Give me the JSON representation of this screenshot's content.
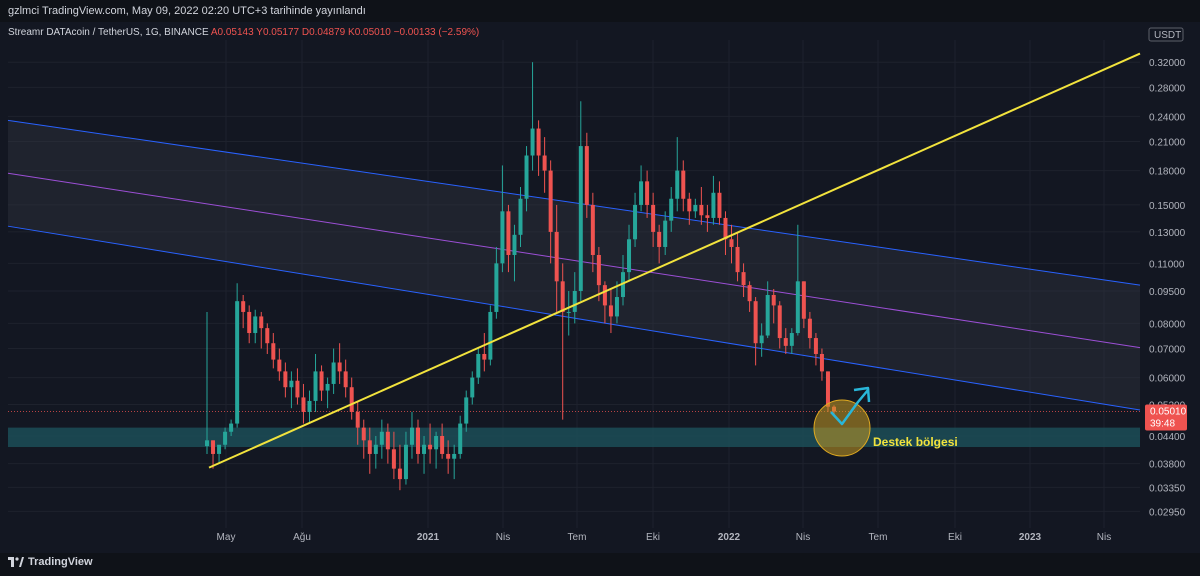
{
  "header": {
    "published": "gzlmci TradingView.com, May 09, 2022 02:20 UTC+3 tarihinde yayınlandı"
  },
  "symbol": {
    "name": "Streamr DATAcoin / TetherUS, 1G, BINANCE",
    "ohlc_label": "A0.05143 Y0.05177 D0.04879 K0.05010 −0.00133 (−2.59%)"
  },
  "annotation": {
    "support_label": "Destek bölgesi"
  },
  "footer": {
    "brand": "TradingView"
  },
  "colors": {
    "background": "#131722",
    "up": "#26a69a",
    "down": "#ef5350",
    "trendline": "#f2e33d",
    "channel_edge": "#2962ff",
    "channel_mid": "#9c4fd6",
    "support_zone": "#1c4e57",
    "circle_fill": "#c79a22",
    "arrow": "#29b6d9"
  },
  "chart_data": {
    "type": "candlestick",
    "title": "",
    "xlabel": "",
    "ylabel": "",
    "y_scale": "log",
    "ylim": [
      0.027,
      0.36
    ],
    "currency_label": "USDT",
    "y_ticks": [
      "0.32000",
      "0.28000",
      "0.24000",
      "0.21000",
      "0.18000",
      "0.15000",
      "0.13000",
      "0.11000",
      "0.09500",
      "0.08000",
      "0.07000",
      "0.06000",
      "0.05200",
      "0.04400",
      "0.03800",
      "0.03350",
      "0.02950"
    ],
    "x_ticks": [
      "May",
      "Ağu",
      "2021",
      "Nis",
      "Tem",
      "Eki",
      "2022",
      "Nis",
      "Tem",
      "Eki",
      "2023",
      "Nis"
    ],
    "last_price": "0.05010",
    "countdown": "39:48",
    "support_zone": [
      0.0415,
      0.046
    ],
    "series": [
      {
        "values": [
          [
            0.085,
            0.04,
            0.043
          ],
          [
            0.043,
            0.037,
            0.04
          ],
          [
            0.04,
            0.038,
            0.042
          ],
          [
            0.046,
            0.041,
            0.045
          ],
          [
            0.048,
            0.044,
            0.047
          ],
          [
            0.099,
            0.046,
            0.09
          ],
          [
            0.093,
            0.078,
            0.085
          ],
          [
            0.088,
            0.072,
            0.076
          ],
          [
            0.086,
            0.072,
            0.083
          ],
          [
            0.085,
            0.07,
            0.078
          ],
          [
            0.08,
            0.068,
            0.072
          ],
          [
            0.076,
            0.063,
            0.066
          ],
          [
            0.07,
            0.059,
            0.062
          ],
          [
            0.065,
            0.054,
            0.057
          ],
          [
            0.062,
            0.051,
            0.059
          ],
          [
            0.063,
            0.052,
            0.054
          ],
          [
            0.058,
            0.047,
            0.05
          ],
          [
            0.056,
            0.047,
            0.053
          ],
          [
            0.068,
            0.05,
            0.062
          ],
          [
            0.064,
            0.053,
            0.056
          ],
          [
            0.06,
            0.051,
            0.058
          ],
          [
            0.07,
            0.055,
            0.065
          ],
          [
            0.072,
            0.058,
            0.062
          ],
          [
            0.066,
            0.054,
            0.057
          ],
          [
            0.06,
            0.048,
            0.05
          ],
          [
            0.053,
            0.042,
            0.046
          ],
          [
            0.048,
            0.039,
            0.043
          ],
          [
            0.046,
            0.036,
            0.04
          ],
          [
            0.044,
            0.037,
            0.042
          ],
          [
            0.048,
            0.039,
            0.045
          ],
          [
            0.047,
            0.038,
            0.041
          ],
          [
            0.045,
            0.035,
            0.037
          ],
          [
            0.042,
            0.033,
            0.035
          ],
          [
            0.045,
            0.034,
            0.042
          ],
          [
            0.05,
            0.039,
            0.046
          ],
          [
            0.048,
            0.038,
            0.04
          ],
          [
            0.044,
            0.036,
            0.042
          ],
          [
            0.047,
            0.038,
            0.041
          ],
          [
            0.045,
            0.037,
            0.044
          ],
          [
            0.047,
            0.039,
            0.04
          ],
          [
            0.043,
            0.036,
            0.039
          ],
          [
            0.042,
            0.035,
            0.04
          ],
          [
            0.049,
            0.039,
            0.047
          ],
          [
            0.056,
            0.045,
            0.054
          ],
          [
            0.062,
            0.052,
            0.06
          ],
          [
            0.07,
            0.058,
            0.068
          ],
          [
            0.076,
            0.062,
            0.066
          ],
          [
            0.088,
            0.064,
            0.085
          ],
          [
            0.12,
            0.082,
            0.11
          ],
          [
            0.185,
            0.105,
            0.145
          ],
          [
            0.15,
            0.105,
            0.115
          ],
          [
            0.135,
            0.1,
            0.128
          ],
          [
            0.165,
            0.12,
            0.155
          ],
          [
            0.205,
            0.145,
            0.195
          ],
          [
            0.32,
            0.18,
            0.225
          ],
          [
            0.235,
            0.175,
            0.195
          ],
          [
            0.215,
            0.16,
            0.18
          ],
          [
            0.19,
            0.11,
            0.13
          ],
          [
            0.15,
            0.085,
            0.1
          ],
          [
            0.11,
            0.048,
            0.085
          ],
          [
            0.095,
            0.075,
            0.085
          ],
          [
            0.105,
            0.08,
            0.095
          ],
          [
            0.26,
            0.09,
            0.205
          ],
          [
            0.22,
            0.14,
            0.15
          ],
          [
            0.16,
            0.105,
            0.115
          ],
          [
            0.12,
            0.09,
            0.098
          ],
          [
            0.1,
            0.08,
            0.088
          ],
          [
            0.096,
            0.076,
            0.083
          ],
          [
            0.1,
            0.08,
            0.092
          ],
          [
            0.115,
            0.088,
            0.105
          ],
          [
            0.135,
            0.1,
            0.125
          ],
          [
            0.16,
            0.12,
            0.15
          ],
          [
            0.185,
            0.145,
            0.17
          ],
          [
            0.18,
            0.14,
            0.15
          ],
          [
            0.16,
            0.12,
            0.13
          ],
          [
            0.135,
            0.11,
            0.12
          ],
          [
            0.145,
            0.115,
            0.138
          ],
          [
            0.165,
            0.13,
            0.155
          ],
          [
            0.215,
            0.145,
            0.18
          ],
          [
            0.19,
            0.145,
            0.155
          ],
          [
            0.16,
            0.135,
            0.145
          ],
          [
            0.155,
            0.14,
            0.15
          ],
          [
            0.165,
            0.135,
            0.142
          ],
          [
            0.15,
            0.13,
            0.14
          ],
          [
            0.175,
            0.135,
            0.16
          ],
          [
            0.17,
            0.135,
            0.14
          ],
          [
            0.145,
            0.115,
            0.125
          ],
          [
            0.135,
            0.11,
            0.12
          ],
          [
            0.13,
            0.1,
            0.105
          ],
          [
            0.11,
            0.092,
            0.098
          ],
          [
            0.1,
            0.085,
            0.09
          ],
          [
            0.092,
            0.064,
            0.072
          ],
          [
            0.08,
            0.067,
            0.075
          ],
          [
            0.1,
            0.074,
            0.093
          ],
          [
            0.096,
            0.08,
            0.088
          ],
          [
            0.09,
            0.07,
            0.074
          ],
          [
            0.078,
            0.068,
            0.071
          ],
          [
            0.078,
            0.068,
            0.076
          ],
          [
            0.135,
            0.075,
            0.1
          ],
          [
            0.1,
            0.078,
            0.082
          ],
          [
            0.085,
            0.07,
            0.074
          ],
          [
            0.076,
            0.064,
            0.068
          ],
          [
            0.07,
            0.059,
            0.062
          ],
          [
            0.062,
            0.05,
            0.0514
          ],
          [
            0.0518,
            0.0488,
            0.0501
          ]
        ]
      }
    ]
  }
}
